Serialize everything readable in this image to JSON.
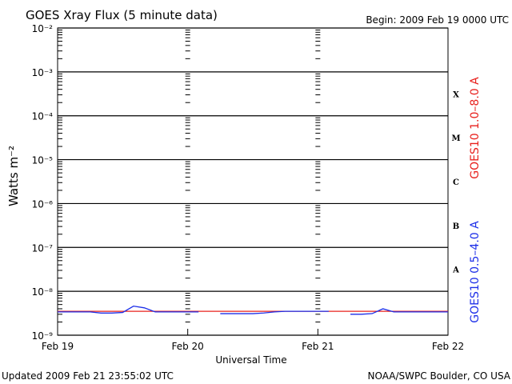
{
  "chart_data": {
    "type": "line",
    "title": "GOES Xray Flux (5 minute data)",
    "begin": "Begin:  2009 Feb 19 0000 UTC",
    "xlabel": "Universal Time",
    "ylabel": "Watts m⁻²",
    "footer_left": "Updated 2009 Feb 21 23:55:02 UTC",
    "footer_right": "NOAA/SWPC Boulder, CO USA",
    "yscale": "log",
    "grid": true,
    "xlim": [
      0,
      72
    ],
    "xticks": [
      {
        "value": 0,
        "label": "Feb 19"
      },
      {
        "value": 24,
        "label": "Feb 20"
      },
      {
        "value": 48,
        "label": "Feb 21"
      },
      {
        "value": 72,
        "label": "Feb 22"
      }
    ],
    "ylim": [
      1e-09,
      0.01
    ],
    "yticks": [
      {
        "value": 1e-09,
        "label": "10⁻⁹"
      },
      {
        "value": 1e-08,
        "label": "10⁻⁸"
      },
      {
        "value": 1e-07,
        "label": "10⁻⁷"
      },
      {
        "value": 1e-06,
        "label": "10⁻⁶"
      },
      {
        "value": 1e-05,
        "label": "10⁻⁵"
      },
      {
        "value": 0.0001,
        "label": "10⁻⁴"
      },
      {
        "value": 0.001,
        "label": "10⁻³"
      },
      {
        "value": 0.01,
        "label": "10⁻²"
      }
    ],
    "flare_classes": [
      {
        "label": "A",
        "value": 1e-08
      },
      {
        "label": "B",
        "value": 1e-07
      },
      {
        "label": "C",
        "value": 1e-06
      },
      {
        "label": "M",
        "value": 1e-05
      },
      {
        "label": "X",
        "value": 0.0001
      }
    ],
    "x": [
      0,
      2,
      4,
      6,
      8,
      10,
      12,
      14,
      16,
      18,
      20,
      22,
      24,
      26,
      28,
      30,
      32,
      34,
      36,
      38,
      40,
      42,
      44,
      46,
      48,
      50,
      52,
      54,
      56,
      58,
      60,
      62,
      64,
      66,
      68,
      70,
      72
    ],
    "series": [
      {
        "name": "GOES10 1.0–8.0 A",
        "color": "#e8201c",
        "values": [
          3.5e-09,
          3.5e-09,
          3.5e-09,
          3.5e-09,
          3.5e-09,
          3.5e-09,
          3.5e-09,
          3.5e-09,
          3.5e-09,
          3.5e-09,
          3.5e-09,
          3.5e-09,
          3.5e-09,
          3.5e-09,
          3.5e-09,
          3.5e-09,
          3.5e-09,
          3.5e-09,
          3.5e-09,
          3.5e-09,
          3.5e-09,
          3.5e-09,
          3.5e-09,
          3.5e-09,
          3.5e-09,
          3.5e-09,
          3.5e-09,
          3.5e-09,
          3.5e-09,
          3.5e-09,
          3.5e-09,
          3.5e-09,
          3.5e-09,
          3.5e-09,
          3.5e-09,
          3.5e-09,
          3.5e-09
        ]
      },
      {
        "name": "GOES10 0.5–4.0 A",
        "color": "#1c2ee8",
        "values": [
          3.4e-09,
          3.4e-09,
          3.4e-09,
          3.4e-09,
          3.2e-09,
          3.2e-09,
          3.3e-09,
          4.6e-09,
          4.2e-09,
          3.4e-09,
          3.4e-09,
          3.4e-09,
          3.4e-09,
          3.4e-09,
          null,
          3.1e-09,
          3.1e-09,
          3.1e-09,
          3.1e-09,
          3.2e-09,
          3.4e-09,
          3.5e-09,
          3.5e-09,
          3.5e-09,
          3.5e-09,
          3.5e-09,
          null,
          3e-09,
          3e-09,
          3.1e-09,
          4e-09,
          3.4e-09,
          3.4e-09,
          3.4e-09,
          3.4e-09,
          3.4e-09,
          3.4e-09
        ]
      }
    ]
  }
}
